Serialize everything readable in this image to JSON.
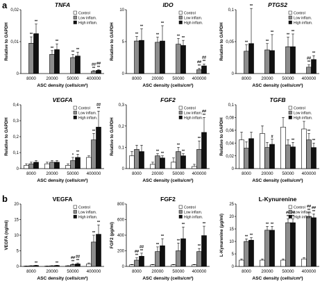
{
  "panel_labels": [
    "a",
    "b"
  ],
  "legend_labels": [
    "Control",
    "Low inflam.",
    "High inflam."
  ],
  "colors": {
    "control": "#ffffff",
    "low": "#8c8c8c",
    "high": "#111111",
    "stroke": "#000000"
  },
  "chart_data": [
    {
      "type": "bar",
      "title": "TNFA",
      "title_italic": true,
      "categories": [
        "8000",
        "20000",
        "50000",
        "400000"
      ],
      "series": [
        {
          "name": "Control",
          "values": [
            0.0,
            0.0,
            0.0,
            0.0
          ],
          "errors": [
            0,
            0,
            0,
            0
          ]
        },
        {
          "name": "Low inflam.",
          "values": [
            0.0095,
            0.006,
            0.005,
            0.0007
          ],
          "errors": [
            0.002,
            0.0012,
            0.001,
            0.0002
          ]
        },
        {
          "name": "High inflam.",
          "values": [
            0.0125,
            0.0075,
            0.0055,
            0.001
          ],
          "errors": [
            0.003,
            0.0018,
            0.0012,
            0.0002
          ]
        }
      ],
      "annotations": [
        [
          "",
          "**",
          "**"
        ],
        [
          "",
          "**",
          "**"
        ],
        [
          "",
          "**",
          "**"
        ],
        [
          "",
          "##\n**",
          "##\n**"
        ]
      ],
      "ylim": [
        0,
        0.02
      ],
      "yticks": [
        "0",
        "0,01",
        "0,02"
      ],
      "ylabel": "Relative to GAPDH",
      "xlabel": "ASC density (cells/cm²)",
      "legend": true
    },
    {
      "type": "bar",
      "title": "IDO",
      "title_italic": true,
      "categories": [
        "8000",
        "20000",
        "50000",
        "400000"
      ],
      "series": [
        {
          "name": "Control",
          "values": [
            0.0,
            0.0,
            0.0,
            0.0
          ],
          "errors": [
            0,
            0,
            0,
            0
          ]
        },
        {
          "name": "Low inflam.",
          "values": [
            5.1,
            4.9,
            4.6,
            0.6
          ],
          "errors": [
            0.7,
            0.8,
            0.9,
            0.2
          ]
        },
        {
          "name": "High inflam.",
          "values": [
            5.2,
            5.1,
            4.4,
            1.2
          ],
          "errors": [
            1.8,
            2.4,
            0.8,
            0.3
          ]
        }
      ],
      "annotations": [
        [
          "",
          "**",
          "**"
        ],
        [
          "",
          "**",
          "**"
        ],
        [
          "",
          "**",
          "**"
        ],
        [
          "",
          "##\n**",
          "##\n**"
        ]
      ],
      "ylim": [
        0,
        10
      ],
      "yticks": [
        "0",
        "5",
        "10"
      ],
      "ylabel": "Relative to GAPDH",
      "xlabel": "ASC density (cells/cm²)",
      "legend": true
    },
    {
      "type": "bar",
      "title": "PTGS2",
      "title_italic": true,
      "categories": [
        "8000",
        "20000",
        "50000",
        "400000"
      ],
      "series": [
        {
          "name": "Control",
          "values": [
            0.0,
            0.0,
            0.0,
            0.0
          ],
          "errors": [
            0,
            0,
            0,
            0
          ]
        },
        {
          "name": "Low inflam.",
          "values": [
            0.035,
            0.037,
            0.042,
            0.01
          ],
          "errors": [
            0.01,
            0.01,
            0.015,
            0.004
          ]
        },
        {
          "name": "High inflam.",
          "values": [
            0.047,
            0.036,
            0.042,
            0.022
          ],
          "errors": [
            0.055,
            0.025,
            0.02,
            0.006
          ]
        }
      ],
      "annotations": [
        [
          "",
          "**",
          "**"
        ],
        [
          "",
          "**",
          "**"
        ],
        [
          "",
          "**",
          "**"
        ],
        [
          "",
          "##\n**",
          "**"
        ]
      ],
      "ylim": [
        0,
        0.1
      ],
      "yticks": [
        "0",
        "0,05",
        "0,1"
      ],
      "ylabel": "Relative to GAPDH",
      "xlabel": "ASC density (cells/cm²)",
      "legend": true
    },
    {
      "type": "bar",
      "title": "VEGFA",
      "title_italic": true,
      "categories": [
        "8000",
        "20000",
        "50000",
        "400000"
      ],
      "series": [
        {
          "name": "Control",
          "values": [
            0.02,
            0.03,
            0.02,
            0.07
          ],
          "errors": [
            0.01,
            0.01,
            0.01,
            0.01
          ]
        },
        {
          "name": "Low inflam.",
          "values": [
            0.03,
            0.04,
            0.05,
            0.18
          ],
          "errors": [
            0.01,
            0.01,
            0.02,
            0.04
          ]
        },
        {
          "name": "High inflam.",
          "values": [
            0.04,
            0.04,
            0.07,
            0.26
          ],
          "errors": [
            0.01,
            0.01,
            0.02,
            0.1
          ]
        }
      ],
      "annotations": [
        [
          "",
          "",
          ""
        ],
        [
          "",
          "",
          ""
        ],
        [
          "",
          "*",
          "**"
        ],
        [
          "",
          "**",
          "##\n**"
        ]
      ],
      "ylim": [
        0,
        0.4
      ],
      "yticks": [
        "0",
        "0,1",
        "0,2",
        "0,3",
        "0,4"
      ],
      "ylabel": "Relative to GAPDH",
      "xlabel": "ASC density (cells/cm²)",
      "legend": true
    },
    {
      "type": "bar",
      "title": "FGF2",
      "title_italic": true,
      "categories": [
        "8000",
        "20000",
        "50000",
        "400000"
      ],
      "series": [
        {
          "name": "Control",
          "values": [
            0.06,
            0.02,
            0.03,
            0.01
          ],
          "errors": [
            0.02,
            0.01,
            0.02,
            0.01
          ]
        },
        {
          "name": "Low inflam.",
          "values": [
            0.09,
            0.06,
            0.08,
            0.09
          ],
          "errors": [
            0.02,
            0.01,
            0.02,
            0.04
          ]
        },
        {
          "name": "High inflam.",
          "values": [
            0.08,
            0.05,
            0.06,
            0.17
          ],
          "errors": [
            0.03,
            0.01,
            0.01,
            0.07
          ]
        }
      ],
      "annotations": [
        [
          "",
          "",
          ""
        ],
        [
          "",
          "**",
          "**"
        ],
        [
          "",
          "**",
          "**"
        ],
        [
          "",
          "**",
          "##\n**"
        ]
      ],
      "ylim": [
        0,
        0.3
      ],
      "yticks": [
        "0",
        "0,1",
        "0,2",
        "0,3"
      ],
      "ylabel": "Relative to GAPDH",
      "xlabel": "ASC density (cells/cm²)",
      "legend": true
    },
    {
      "type": "bar",
      "title": "TGFB",
      "title_italic": true,
      "categories": [
        "8000",
        "20000",
        "50000",
        "400000"
      ],
      "series": [
        {
          "name": "Control",
          "values": [
            0.045,
            0.055,
            0.065,
            0.062
          ],
          "errors": [
            0.012,
            0.012,
            0.015,
            0.012
          ]
        },
        {
          "name": "Low inflam.",
          "values": [
            0.032,
            0.033,
            0.037,
            0.045
          ],
          "errors": [
            0.01,
            0.008,
            0.008,
            0.01
          ]
        },
        {
          "name": "High inflam.",
          "values": [
            0.047,
            0.038,
            0.034,
            0.033
          ],
          "errors": [
            0.01,
            0.008,
            0.007,
            0.007
          ]
        }
      ],
      "annotations": [
        [
          "",
          "",
          ""
        ],
        [
          "",
          "",
          "#"
        ],
        [
          "",
          "",
          "**"
        ],
        [
          "",
          "**",
          "**"
        ]
      ],
      "ylim": [
        0,
        0.1
      ],
      "yticks": [
        "0",
        "0,02",
        "0,04",
        "0,06",
        "0,08",
        "0,1"
      ],
      "ylabel": "Relative to GAPDH",
      "xlabel": "ASC density (cells/cm²)",
      "legend": true
    },
    {
      "type": "bar",
      "title": "VEGFA",
      "title_italic": false,
      "categories": [
        "8000",
        "20000",
        "50000",
        "400000"
      ],
      "series": [
        {
          "name": "Control",
          "values": [
            0.1,
            0.1,
            0.2,
            0.8
          ],
          "errors": [
            0.05,
            0.05,
            0.05,
            0.3
          ]
        },
        {
          "name": "Low inflam.",
          "values": [
            0.2,
            0.2,
            0.6,
            7.8
          ],
          "errors": [
            0.05,
            0.05,
            0.2,
            2.2
          ]
        },
        {
          "name": "High inflam.",
          "values": [
            0.3,
            0.3,
            0.8,
            10.3
          ],
          "errors": [
            0.05,
            0.05,
            0.3,
            3.0
          ]
        }
      ],
      "annotations": [
        [
          "",
          "",
          "**"
        ],
        [
          "",
          "",
          "**"
        ],
        [
          "",
          "##\n**",
          "##\n**"
        ],
        [
          "",
          "**",
          "**"
        ]
      ],
      "ylim": [
        0,
        20
      ],
      "yticks": [
        "0",
        "5",
        "10",
        "15",
        "20"
      ],
      "ylabel": "VEGFA (ng/ml)",
      "xlabel": "ASC density (cells/cm²)",
      "legend": true
    },
    {
      "type": "bar",
      "title": "FGF2",
      "title_italic": false,
      "categories": [
        "8000",
        "20000",
        "50000",
        "400000"
      ],
      "series": [
        {
          "name": "Control",
          "values": [
            20,
            20,
            20,
            20
          ],
          "errors": [
            5,
            5,
            5,
            5
          ]
        },
        {
          "name": "Low inflam.",
          "values": [
            80,
            190,
            200,
            190
          ],
          "errors": [
            30,
            60,
            100,
            40
          ]
        },
        {
          "name": "High inflam.",
          "values": [
            130,
            265,
            355,
            395
          ],
          "errors": [
            40,
            90,
            150,
            120
          ]
        }
      ],
      "annotations": [
        [
          "",
          "##\n**",
          "##\n**"
        ],
        [
          "",
          "**",
          "**"
        ],
        [
          "",
          "**",
          "**"
        ],
        [
          "",
          "**",
          "**"
        ]
      ],
      "ylim": [
        0,
        800
      ],
      "yticks": [
        "0",
        "200",
        "400",
        "600",
        "800"
      ],
      "ylabel": "FGF2 (pg/ml)",
      "xlabel": "ASC density (cells/cm²)",
      "legend": true
    },
    {
      "type": "bar",
      "title": "L-Kynurenine",
      "title_italic": false,
      "categories": [
        "8000",
        "20000",
        "50000",
        "400000"
      ],
      "series": [
        {
          "name": "Control",
          "values": [
            2.5,
            2.5,
            2.5,
            3
          ],
          "errors": [
            0.5,
            0.5,
            0.5,
            0.5
          ]
        },
        {
          "name": "Low inflam.",
          "values": [
            10,
            14.5,
            17.5,
            20
          ],
          "errors": [
            1,
            1.5,
            1.5,
            1.5
          ]
        },
        {
          "name": "High inflam.",
          "values": [
            10.5,
            14.5,
            17.5,
            19.5
          ],
          "errors": [
            1,
            1.5,
            1.5,
            1.5
          ]
        }
      ],
      "annotations": [
        [
          "",
          "**",
          "**"
        ],
        [
          "",
          "**",
          "**"
        ],
        [
          "",
          "##\n**",
          "##\n**"
        ],
        [
          "",
          "##\n**",
          "##\n**"
        ]
      ],
      "ylim": [
        0,
        25
      ],
      "yticks": [
        "0",
        "5",
        "10",
        "15",
        "20",
        "25"
      ],
      "ylabel": "L-Kynurenine (µg/ml)",
      "xlabel": "ASC density (cells/cm²)",
      "legend": true
    }
  ]
}
